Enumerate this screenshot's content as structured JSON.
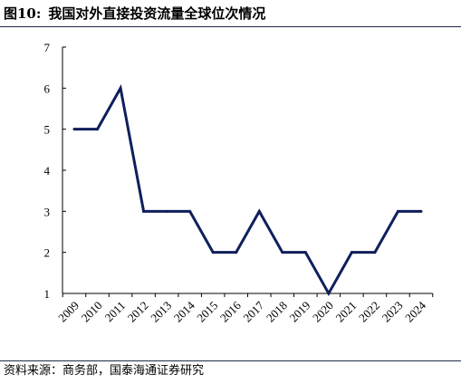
{
  "figure": {
    "number": "图10:",
    "title": "我国对外直接投资流量全球位次情况",
    "source": "资料来源：商务部，国泰海通证券研究"
  },
  "colors": {
    "line": "#0f1f5c",
    "axis": "#000000",
    "rule": "#1f2a44"
  },
  "chart_data": {
    "type": "line",
    "title": "我国对外直接投资流量全球位次情况",
    "xlabel": "",
    "ylabel": "",
    "categories": [
      "2009",
      "2010",
      "2011",
      "2012",
      "2013",
      "2014",
      "2015",
      "2016",
      "2017",
      "2018",
      "2019",
      "2020",
      "2021",
      "2022",
      "2023",
      "2024"
    ],
    "series": [
      {
        "values": [
          5,
          5,
          6,
          3,
          3,
          3,
          2,
          2,
          3,
          2,
          2,
          1,
          2,
          2,
          3,
          3
        ]
      }
    ],
    "ylim": [
      1,
      7
    ],
    "yticks": [
      1,
      2,
      3,
      4,
      5,
      6,
      7
    ],
    "grid": false,
    "legend": "none"
  }
}
